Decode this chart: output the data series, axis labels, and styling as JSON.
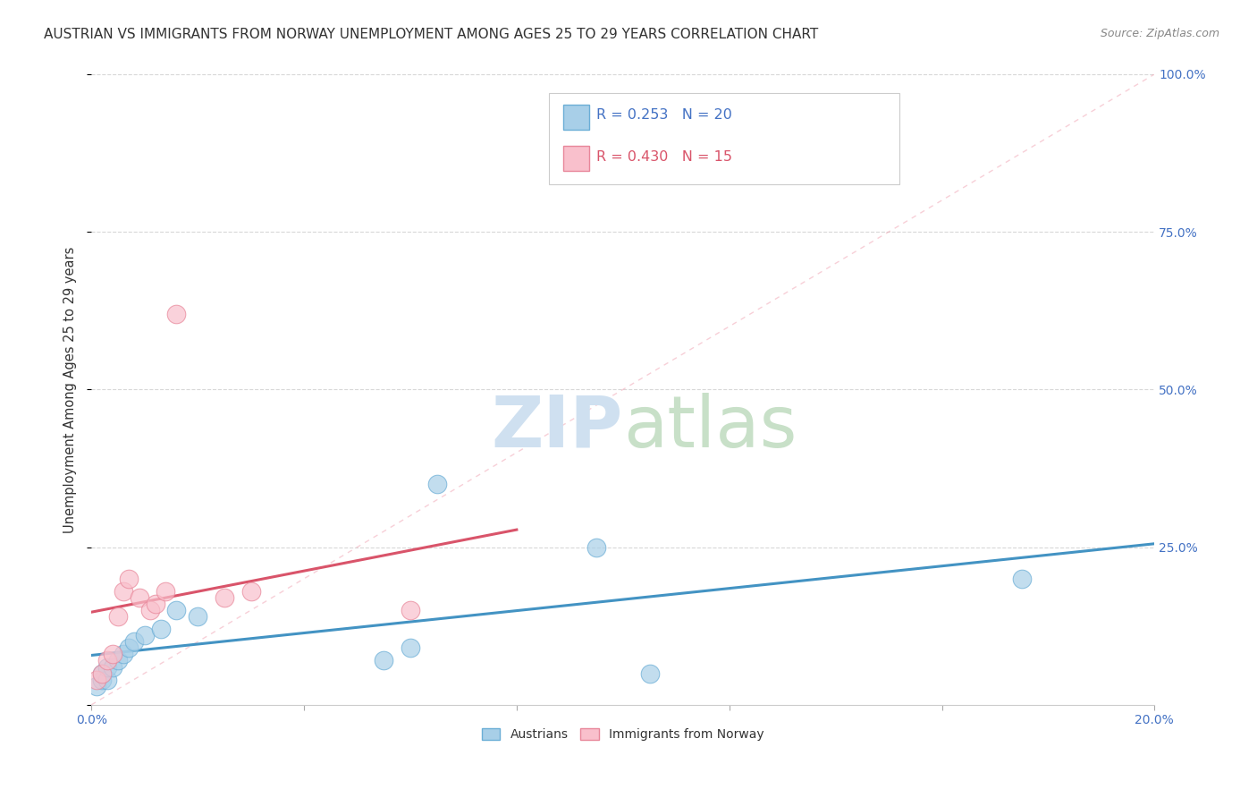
{
  "title": "AUSTRIAN VS IMMIGRANTS FROM NORWAY UNEMPLOYMENT AMONG AGES 25 TO 29 YEARS CORRELATION CHART",
  "source": "Source: ZipAtlas.com",
  "ylabel": "Unemployment Among Ages 25 to 29 years",
  "xlim": [
    0.0,
    0.2
  ],
  "ylim": [
    0.0,
    1.0
  ],
  "xticks": [
    0.0,
    0.04,
    0.08,
    0.12,
    0.16,
    0.2
  ],
  "yticks": [
    0.0,
    0.25,
    0.5,
    0.75,
    1.0
  ],
  "xtick_labels_show": [
    "0.0%",
    "20.0%"
  ],
  "ytick_labels_show": [
    "25.0%",
    "50.0%",
    "75.0%",
    "100.0%"
  ],
  "austrians_x": [
    0.001,
    0.002,
    0.002,
    0.003,
    0.003,
    0.004,
    0.005,
    0.006,
    0.007,
    0.008,
    0.01,
    0.013,
    0.016,
    0.02,
    0.055,
    0.06,
    0.065,
    0.095,
    0.105,
    0.175
  ],
  "austrians_y": [
    0.03,
    0.04,
    0.05,
    0.04,
    0.06,
    0.06,
    0.07,
    0.08,
    0.09,
    0.1,
    0.11,
    0.12,
    0.15,
    0.14,
    0.07,
    0.09,
    0.35,
    0.25,
    0.05,
    0.2
  ],
  "norway_x": [
    0.001,
    0.002,
    0.003,
    0.004,
    0.005,
    0.006,
    0.007,
    0.009,
    0.011,
    0.012,
    0.014,
    0.016,
    0.025,
    0.03,
    0.06
  ],
  "norway_y": [
    0.04,
    0.05,
    0.07,
    0.08,
    0.14,
    0.18,
    0.2,
    0.17,
    0.15,
    0.16,
    0.18,
    0.62,
    0.17,
    0.18,
    0.15
  ],
  "blue_dot_color": "#a8cfe8",
  "blue_dot_edge": "#6baed6",
  "pink_dot_color": "#f9c0cc",
  "pink_dot_edge": "#e8879a",
  "blue_line_color": "#4393c3",
  "pink_line_color": "#d9546a",
  "r_austrians": 0.253,
  "n_austrians": 20,
  "r_norway": 0.43,
  "n_norway": 15,
  "watermark_zip_color": "#cfe0f0",
  "watermark_atlas_color": "#c8e0c8",
  "background_color": "#ffffff",
  "grid_color": "#d8d8d8",
  "text_color": "#333333",
  "tick_color": "#4472c4",
  "diag_color": "#f0a0b0"
}
